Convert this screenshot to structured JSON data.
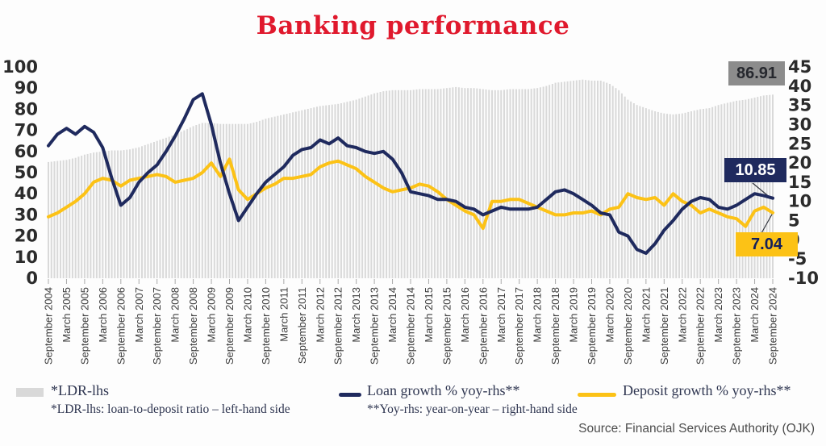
{
  "title": "Banking performance",
  "source": "Source: Financial Services Authority (OJK)",
  "callouts": {
    "ldr": "86.91",
    "loan": "10.85",
    "deposit": "7.04"
  },
  "legend": {
    "ldr_label": "*LDR-lhs",
    "loan_label": "Loan growth % yoy-rhs**",
    "deposit_label": "Deposit growth % yoy-rhs**",
    "footnote_ldr": "*LDR-lhs: loan-to-deposit ratio – left-hand side",
    "footnote_yoy": "**Yoy-rhs: year-on-year – right-hand side"
  },
  "colors": {
    "title_red": "#e0192d",
    "bar_gray": "#d9d9d9",
    "loan_navy": "#1f2a5e",
    "deposit_yellow": "#fcc216",
    "axis_text": "#2b2b2b",
    "xlabel_text": "#3c3c3c"
  },
  "chart_data": {
    "type": "combo",
    "title": "Banking performance",
    "sampling": "quarterly",
    "x_start": "September 2004",
    "x_end": "September 2024",
    "x_tick_labels": [
      "September 2004",
      "March 2005",
      "September 2005",
      "March 2006",
      "September 2006",
      "March 2007",
      "September 2007",
      "March 2008",
      "September 2008",
      "March 2009",
      "September 2009",
      "March 2010",
      "September 2010",
      "March 2011",
      "September 2011",
      "March 2012",
      "September 2012",
      "March 2013",
      "September 2013",
      "March 2014",
      "September 2014",
      "March 2015",
      "September 2015",
      "March 2016",
      "September 2016",
      "March 2017",
      "September 2017",
      "March 2018",
      "September 2018",
      "March 2019",
      "September 2019",
      "March 2020",
      "September 2020",
      "March 2021",
      "September 2021",
      "March 2022",
      "September 2022",
      "March 2023",
      "September 2023",
      "March 2024",
      "September 2024"
    ],
    "axes": {
      "left": {
        "min": 0,
        "max": 100,
        "ticks": [
          100,
          90,
          80,
          70,
          60,
          50,
          40,
          30,
          20,
          10,
          0
        ]
      },
      "right": {
        "min": -10,
        "max": 45,
        "ticks": [
          45,
          40,
          35,
          30,
          25,
          20,
          15,
          10,
          5,
          0,
          -5,
          -10
        ]
      }
    },
    "series": [
      {
        "name": "LDR-lhs",
        "type": "bar",
        "axis": "left",
        "color": "#d9d9d9",
        "last_value": 86.91,
        "values": [
          55,
          55.5,
          56,
          57,
          58.5,
          59.5,
          60,
          60.5,
          60.5,
          61,
          62,
          63.5,
          65,
          66.5,
          68,
          70,
          72,
          73.5,
          73.5,
          73,
          73,
          73,
          73,
          74,
          75.5,
          76.5,
          77.5,
          78.5,
          79.5,
          80.5,
          81.5,
          82,
          82.5,
          83.5,
          84.5,
          86,
          87.5,
          88.5,
          89,
          89,
          89,
          89.5,
          89.5,
          89.5,
          90,
          90.5,
          90,
          90,
          89.5,
          89,
          89,
          89.5,
          89.5,
          89.5,
          90,
          91,
          92.5,
          93,
          93.5,
          94,
          93.5,
          93.5,
          92,
          89,
          84.5,
          82,
          80.5,
          79,
          78,
          77.5,
          78,
          79,
          80,
          80.5,
          82,
          83,
          84,
          84.5,
          85.5,
          86.5,
          86.91
        ]
      },
      {
        "name": "Loan growth % yoy-rhs",
        "type": "line",
        "axis": "right",
        "color": "#1f2a5e",
        "last_value": 10.85,
        "values": [
          24.5,
          27.5,
          29,
          27.5,
          29.5,
          28,
          24,
          16,
          9,
          11,
          15,
          17.5,
          19.5,
          23,
          27,
          31.5,
          36.5,
          38,
          30,
          20,
          12,
          5,
          8.5,
          12,
          15,
          17,
          19,
          22,
          23.5,
          24,
          26,
          25,
          26.5,
          24.5,
          24,
          23,
          22.5,
          23,
          21,
          17.5,
          12.5,
          12,
          11.5,
          10.5,
          10.5,
          10,
          8.5,
          8,
          6.5,
          7.5,
          8.5,
          8,
          8,
          8,
          8.5,
          10.5,
          12.5,
          13,
          12,
          10.5,
          9,
          7,
          6.5,
          2,
          1,
          -2.5,
          -3.5,
          -1,
          2.5,
          5,
          8,
          10,
          11,
          10.5,
          8.5,
          8,
          9,
          10.5,
          12,
          11.5,
          10.85
        ]
      },
      {
        "name": "Deposit growth % yoy-rhs",
        "type": "line",
        "axis": "right",
        "color": "#fcc216",
        "last_value": 7.04,
        "values": [
          6,
          7,
          8.5,
          10,
          12,
          15,
          16,
          15.5,
          14,
          15.5,
          16,
          16.5,
          17,
          16.5,
          15,
          15.5,
          16,
          17.5,
          20,
          16.5,
          21,
          13,
          10.5,
          12,
          13.5,
          14.5,
          16,
          16,
          16.5,
          17,
          19,
          20,
          20.5,
          19.5,
          18.5,
          16.5,
          15,
          13.5,
          12.5,
          13,
          13.5,
          14.5,
          14,
          12.5,
          10.5,
          9,
          7.5,
          6.5,
          3,
          10,
          10,
          10.5,
          10.5,
          9.5,
          8.5,
          7.5,
          6.5,
          6.5,
          7,
          7,
          7.5,
          6.5,
          8,
          8.5,
          12,
          11,
          10.5,
          11,
          9,
          12,
          10,
          9,
          7,
          8,
          7,
          6,
          5.5,
          3.5,
          7.5,
          8.5,
          7.04
        ]
      }
    ]
  }
}
